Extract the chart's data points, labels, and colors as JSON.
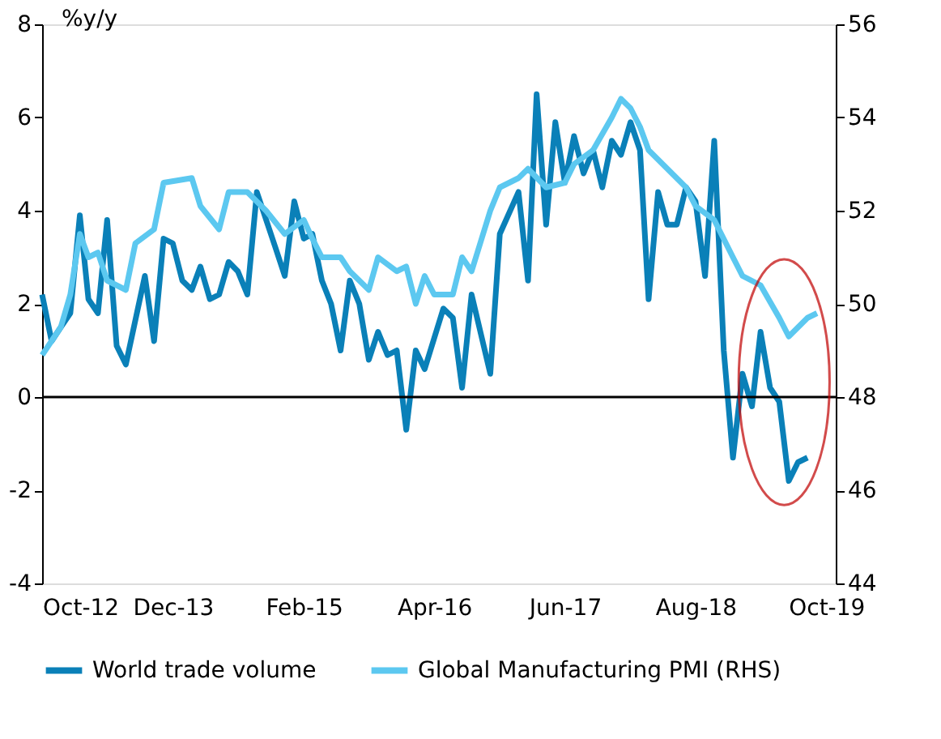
{
  "chart_data": {
    "type": "line",
    "ylabel": "%y/y",
    "legend": "bottom",
    "grid": false,
    "xlim": [
      "2012-10",
      "2019-11"
    ],
    "xticks": [
      {
        "value": "2012-10",
        "label": "Oct-12"
      },
      {
        "value": "2013-12",
        "label": "Dec-13"
      },
      {
        "value": "2015-02",
        "label": "Feb-15"
      },
      {
        "value": "2016-04",
        "label": "Apr-16"
      },
      {
        "value": "2017-06",
        "label": "Jun-17"
      },
      {
        "value": "2018-08",
        "label": "Aug-18"
      },
      {
        "value": "2019-10",
        "label": "Oct-19"
      }
    ],
    "ylim": [
      -4,
      8
    ],
    "yticks": [
      -4,
      -2,
      0,
      2,
      4,
      6,
      8
    ],
    "y2lim": [
      44,
      56
    ],
    "y2ticks": [
      44,
      46,
      48,
      50,
      52,
      54,
      56
    ],
    "ref_lines": [
      {
        "axis": "y",
        "value": 0,
        "color": "#000000"
      }
    ],
    "series": [
      {
        "name": "World trade volume",
        "color": "#0a80b8",
        "axis": "y",
        "x": [
          "2012-10",
          "2012-11",
          "2012-12",
          "2013-01",
          "2013-02",
          "2013-03",
          "2013-04",
          "2013-05",
          "2013-06",
          "2013-07",
          "2013-09",
          "2013-10",
          "2013-11",
          "2013-12",
          "2014-01",
          "2014-02",
          "2014-03",
          "2014-04",
          "2014-05",
          "2014-06",
          "2014-07",
          "2014-08",
          "2014-09",
          "2014-11",
          "2014-12",
          "2015-01",
          "2015-02",
          "2015-03",
          "2015-04",
          "2015-05",
          "2015-06",
          "2015-07",
          "2015-08",
          "2015-09",
          "2015-10",
          "2015-11",
          "2015-12",
          "2016-01",
          "2016-02",
          "2016-03",
          "2016-05",
          "2016-06",
          "2016-07",
          "2016-08",
          "2016-10",
          "2016-11",
          "2017-01",
          "2017-02",
          "2017-03",
          "2017-04",
          "2017-05",
          "2017-06",
          "2017-07",
          "2017-08",
          "2017-09",
          "2017-10",
          "2017-11",
          "2017-12",
          "2018-01",
          "2018-02",
          "2018-03",
          "2018-04",
          "2018-05",
          "2018-06",
          "2018-07",
          "2018-08",
          "2018-09",
          "2018-10",
          "2018-11",
          "2018-12",
          "2019-01",
          "2019-02",
          "2019-03",
          "2019-04",
          "2019-05",
          "2019-06",
          "2019-07",
          "2019-08"
        ],
        "values": [
          2.2,
          1.2,
          1.5,
          1.8,
          3.9,
          2.1,
          1.8,
          3.8,
          1.1,
          0.7,
          2.6,
          1.2,
          3.4,
          3.3,
          2.5,
          2.3,
          2.8,
          2.1,
          2.2,
          2.9,
          2.7,
          2.2,
          4.4,
          3.2,
          2.6,
          4.2,
          3.4,
          3.5,
          2.5,
          2.0,
          1.0,
          2.5,
          2.0,
          0.8,
          1.4,
          0.9,
          1.0,
          -0.7,
          1.0,
          0.6,
          1.9,
          1.7,
          0.2,
          2.2,
          0.5,
          3.5,
          4.4,
          2.5,
          6.5,
          3.7,
          5.9,
          4.6,
          5.6,
          4.8,
          5.3,
          4.5,
          5.5,
          5.2,
          5.9,
          5.3,
          2.1,
          4.4,
          3.7,
          3.7,
          4.5,
          4.2,
          2.6,
          5.5,
          1.0,
          -1.3,
          0.5,
          -0.2,
          1.4,
          0.2,
          -0.1,
          -1.8,
          -1.4,
          -1.3
        ]
      },
      {
        "name": "Global Manufacturing PMI (RHS)",
        "color": "#5cc8f0",
        "axis": "y2",
        "x": [
          "2012-10",
          "2012-12",
          "2013-01",
          "2013-02",
          "2013-03",
          "2013-04",
          "2013-05",
          "2013-07",
          "2013-08",
          "2013-10",
          "2013-11",
          "2014-02",
          "2014-03",
          "2014-05",
          "2014-06",
          "2014-08",
          "2014-10",
          "2014-12",
          "2015-02",
          "2015-03",
          "2015-04",
          "2015-06",
          "2015-07",
          "2015-09",
          "2015-10",
          "2015-12",
          "2016-01",
          "2016-02",
          "2016-03",
          "2016-04",
          "2016-06",
          "2016-07",
          "2016-08",
          "2016-10",
          "2016-11",
          "2017-01",
          "2017-02",
          "2017-04",
          "2017-06",
          "2017-07",
          "2017-09",
          "2017-11",
          "2017-12",
          "2018-01",
          "2018-02",
          "2018-03",
          "2018-05",
          "2018-07",
          "2018-08",
          "2018-10",
          "2018-12",
          "2019-01",
          "2019-03",
          "2019-05",
          "2019-06",
          "2019-08",
          "2019-09"
        ],
        "values": [
          48.9,
          49.5,
          50.2,
          51.5,
          51.0,
          51.1,
          50.5,
          50.3,
          51.3,
          51.6,
          52.6,
          52.7,
          52.1,
          51.6,
          52.4,
          52.4,
          52.0,
          51.5,
          51.8,
          51.4,
          51.0,
          51.0,
          50.7,
          50.3,
          51.0,
          50.7,
          50.8,
          50.0,
          50.6,
          50.2,
          50.2,
          51.0,
          50.7,
          52.0,
          52.5,
          52.7,
          52.9,
          52.5,
          52.6,
          53.0,
          53.3,
          54.0,
          54.4,
          54.2,
          53.8,
          53.3,
          52.9,
          52.5,
          52.1,
          51.8,
          51.0,
          50.6,
          50.4,
          49.7,
          49.3,
          49.7,
          49.8
        ]
      }
    ]
  }
}
